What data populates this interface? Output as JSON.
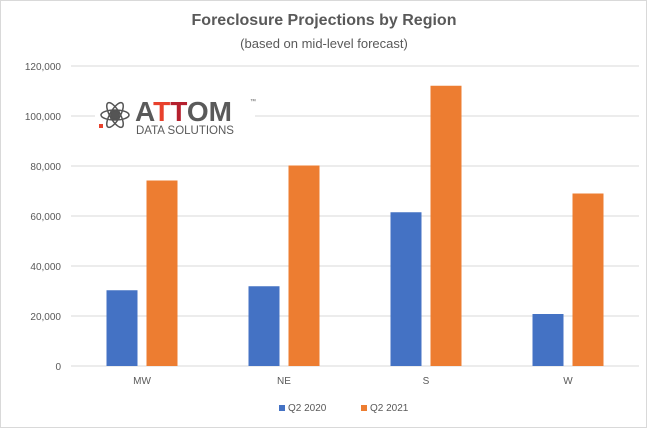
{
  "logo": {
    "name": "ATTOM",
    "tagline": "DATA SOLUTIONS",
    "tm": "™"
  },
  "chart_data": {
    "type": "bar",
    "title": "Foreclosure Projections by Region",
    "subtitle": "(based on mid-level forecast)",
    "xlabel": "",
    "ylabel": "",
    "categories": [
      "MW",
      "NE",
      "S",
      "W"
    ],
    "series": [
      {
        "name": "Q2 2020",
        "color": "#4472C4",
        "values": [
          30300,
          31900,
          61500,
          20800
        ]
      },
      {
        "name": "Q2 2021",
        "color": "#ED7D31",
        "values": [
          74200,
          80200,
          112100,
          69000
        ]
      }
    ],
    "ylim": [
      0,
      120000
    ],
    "yticks": [
      0,
      20000,
      40000,
      60000,
      80000,
      100000,
      120000
    ],
    "ytick_labels": [
      "0",
      "20,000",
      "40,000",
      "60,000",
      "80,000",
      "100,000",
      "120,000"
    ],
    "grid": true,
    "legend_position": "bottom"
  }
}
